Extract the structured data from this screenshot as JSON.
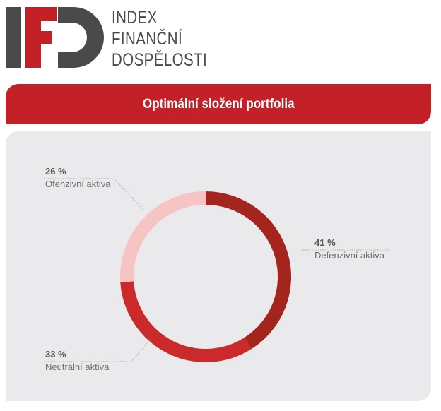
{
  "brand": {
    "logo_letters": "IFD",
    "name_lines": [
      "INDEX",
      "FINANČNÍ",
      "DOSPĚLOSTI"
    ]
  },
  "header": {
    "title": "Optimální složení portfolia"
  },
  "colors": {
    "brand_red": "#c42027",
    "logo_gray": "#4a4a4a",
    "panel_bg": "#eaeaec"
  },
  "chart_data": {
    "type": "pie",
    "donut": true,
    "title": "Optimální složení portfolia",
    "slices": [
      {
        "label": "Defenzivní aktiva",
        "value": 41,
        "display": "41 %",
        "color": "#a3251e"
      },
      {
        "label": "Neutrální aktiva",
        "value": 33,
        "display": "33 %",
        "color": "#cb2a2b"
      },
      {
        "label": "Ofenzivní aktiva",
        "value": 26,
        "display": "26 %",
        "color": "#f6c4c3"
      }
    ],
    "legend": "none"
  }
}
